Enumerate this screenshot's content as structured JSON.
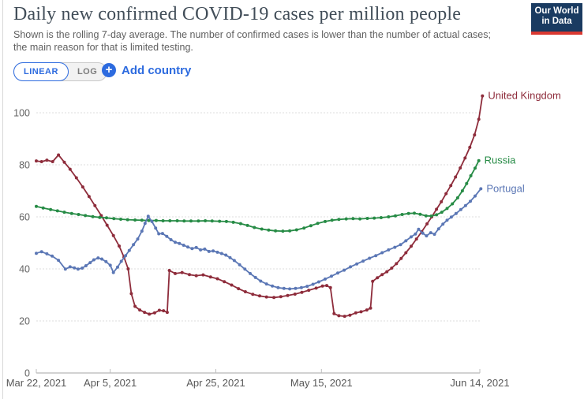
{
  "theme": {
    "accent": "#2d6bdf",
    "logo-bg": "#1a3b61",
    "logo-red": "#d93831",
    "title-color": "#414d58",
    "subtitle-color": "#606060"
  },
  "header": {
    "title": "Daily new confirmed COVID-19 cases per million people",
    "subtitle_line1": "Shown is the rolling 7-day average. The number of confirmed cases is lower than the number of actual cases;",
    "subtitle_line2": "the main reason for that is limited testing.",
    "logo_line1": "Our World",
    "logo_line2": "in Data"
  },
  "controls": {
    "linear_label": "LINEAR",
    "log_label": "LOG",
    "selected_scale": "LINEAR",
    "plus_icon": "+",
    "add_country_label": "Add country"
  },
  "chart_data": {
    "type": "line",
    "title": "Daily new confirmed COVID-19 cases per million people",
    "x_axis": {
      "unit": "date (days since Mar 22, 2021)",
      "ticks": [
        {
          "day": 0,
          "label": "Mar 22, 2021"
        },
        {
          "day": 14,
          "label": "Apr 5, 2021"
        },
        {
          "day": 34,
          "label": "Apr 25, 2021"
        },
        {
          "day": 54,
          "label": "May 15, 2021"
        },
        {
          "day": 84,
          "label": "Jun 14, 2021"
        }
      ]
    },
    "y_axis": {
      "min": 0,
      "max": 110,
      "gridlines": [
        0,
        20,
        40,
        60,
        80,
        100
      ]
    },
    "grid": true,
    "legend_position": "end-of-line",
    "series": [
      {
        "name": "United Kingdom",
        "color": "#8e2c3b",
        "points": [
          [
            0,
            81.5
          ],
          [
            1,
            81.2
          ],
          [
            2,
            81.8
          ],
          [
            3.1,
            81.2
          ],
          [
            4.2,
            83.8
          ],
          [
            5.3,
            81
          ],
          [
            6.4,
            78.3
          ],
          [
            7.6,
            75
          ],
          [
            8.8,
            71.5
          ],
          [
            10,
            67.8
          ],
          [
            11.1,
            64.3
          ],
          [
            12.3,
            60.5
          ],
          [
            13.4,
            56.8
          ],
          [
            14.6,
            52.8
          ],
          [
            15.7,
            48.8
          ],
          [
            16.6,
            44.5
          ],
          [
            17.4,
            40
          ],
          [
            18,
            30.5
          ],
          [
            18.7,
            25.6
          ],
          [
            19.6,
            24.2
          ],
          [
            20.5,
            23.3
          ],
          [
            21.4,
            22.6
          ],
          [
            22.4,
            23.1
          ],
          [
            23.3,
            24.1
          ],
          [
            24.1,
            23.9
          ],
          [
            24.8,
            23.3
          ],
          [
            25.2,
            39.4
          ],
          [
            26.3,
            38.2
          ],
          [
            27.6,
            38.6
          ],
          [
            29,
            37.8
          ],
          [
            30.3,
            37.4
          ],
          [
            31.6,
            37.7
          ],
          [
            33,
            36.9
          ],
          [
            34.3,
            36.2
          ],
          [
            35.6,
            35.1
          ],
          [
            37,
            33.8
          ],
          [
            38.3,
            32.4
          ],
          [
            39.6,
            31.2
          ],
          [
            41,
            30.2
          ],
          [
            42.3,
            29.6
          ],
          [
            43.6,
            29.2
          ],
          [
            45,
            29
          ],
          [
            46.3,
            29.3
          ],
          [
            47.6,
            29.8
          ],
          [
            49,
            30.3
          ],
          [
            50.3,
            31
          ],
          [
            51.6,
            31.8
          ],
          [
            53,
            32.6
          ],
          [
            54.2,
            33.4
          ],
          [
            55,
            33.6
          ],
          [
            55.7,
            32.8
          ],
          [
            56.4,
            22.8
          ],
          [
            57.3,
            22
          ],
          [
            58.4,
            21.8
          ],
          [
            59.4,
            22.2
          ],
          [
            60.5,
            23.1
          ],
          [
            61.5,
            23.5
          ],
          [
            62.6,
            24.2
          ],
          [
            63.3,
            24.9
          ],
          [
            63.7,
            35.2
          ],
          [
            64.6,
            36.6
          ],
          [
            65.5,
            37.8
          ],
          [
            66.4,
            38.9
          ],
          [
            67.3,
            40.3
          ],
          [
            68.2,
            42
          ],
          [
            69.1,
            44
          ],
          [
            70,
            46.2
          ],
          [
            71,
            48.7
          ],
          [
            72,
            51.5
          ],
          [
            73,
            54.3
          ],
          [
            74,
            57.3
          ],
          [
            74.9,
            60
          ],
          [
            75.8,
            62.9
          ],
          [
            76.7,
            65.8
          ],
          [
            77.6,
            68.9
          ],
          [
            78.5,
            72
          ],
          [
            79.4,
            75.3
          ],
          [
            80.3,
            78.8
          ],
          [
            81.2,
            82.6
          ],
          [
            82.1,
            86.7
          ],
          [
            83,
            91.5
          ],
          [
            83.8,
            97.5
          ],
          [
            84.5,
            106.5
          ]
        ]
      },
      {
        "name": "Russia",
        "color": "#268b45",
        "points": [
          [
            0,
            64
          ],
          [
            1.3,
            63.4
          ],
          [
            2.7,
            62.8
          ],
          [
            4,
            62.3
          ],
          [
            5.3,
            61.8
          ],
          [
            6.7,
            61.3
          ],
          [
            8,
            60.9
          ],
          [
            9.3,
            60.5
          ],
          [
            10.7,
            60.1
          ],
          [
            12,
            59.8
          ],
          [
            13.3,
            59.6
          ],
          [
            14.7,
            59.3
          ],
          [
            16,
            59.1
          ],
          [
            17.3,
            58.9
          ],
          [
            18.7,
            58.8
          ],
          [
            20,
            58.7
          ],
          [
            21.3,
            58.6
          ],
          [
            22.7,
            58.6
          ],
          [
            24,
            58.5
          ],
          [
            25.3,
            58.5
          ],
          [
            26.7,
            58.5
          ],
          [
            28,
            58.4
          ],
          [
            29.3,
            58.4
          ],
          [
            30.7,
            58.4
          ],
          [
            32,
            58.5
          ],
          [
            33.3,
            58.4
          ],
          [
            34.7,
            58.3
          ],
          [
            36,
            58.2
          ],
          [
            37.3,
            57.9
          ],
          [
            38.7,
            57.4
          ],
          [
            40,
            56.7
          ],
          [
            41.3,
            55.9
          ],
          [
            42.7,
            55.3
          ],
          [
            44,
            54.9
          ],
          [
            45.3,
            54.6
          ],
          [
            46.7,
            54.5
          ],
          [
            48,
            54.6
          ],
          [
            49.3,
            55
          ],
          [
            50.7,
            55.7
          ],
          [
            52,
            56.6
          ],
          [
            53.3,
            57.5
          ],
          [
            54.7,
            58.2
          ],
          [
            56,
            58.7
          ],
          [
            57.3,
            59
          ],
          [
            58.7,
            59.2
          ],
          [
            60,
            59.3
          ],
          [
            61.3,
            59.2
          ],
          [
            62.7,
            59.4
          ],
          [
            64,
            59.5
          ],
          [
            65.3,
            59.7
          ],
          [
            66.7,
            60
          ],
          [
            68,
            60.4
          ],
          [
            69.3,
            60.9
          ],
          [
            70.5,
            61.3
          ],
          [
            71.6,
            61.4
          ],
          [
            72.7,
            61
          ],
          [
            73.8,
            60.4
          ],
          [
            74.8,
            60.3
          ],
          [
            75.8,
            60.8
          ],
          [
            76.8,
            61.8
          ],
          [
            77.8,
            63.2
          ],
          [
            78.8,
            65
          ],
          [
            79.8,
            67.3
          ],
          [
            80.7,
            70
          ],
          [
            81.5,
            72.8
          ],
          [
            82.3,
            75.8
          ],
          [
            83.1,
            78.7
          ],
          [
            83.8,
            81.6
          ]
        ]
      },
      {
        "name": "Portugal",
        "color": "#5b77b5",
        "points": [
          [
            0,
            46
          ],
          [
            1,
            46.6
          ],
          [
            2,
            45.8
          ],
          [
            3,
            44.9
          ],
          [
            4.2,
            43.3
          ],
          [
            5.5,
            39.9
          ],
          [
            6.4,
            40.8
          ],
          [
            7.2,
            40.4
          ],
          [
            7.9,
            39.9
          ],
          [
            8.7,
            40.3
          ],
          [
            9.4,
            41.2
          ],
          [
            10.2,
            42.4
          ],
          [
            10.9,
            43.5
          ],
          [
            11.7,
            44.2
          ],
          [
            12.4,
            43.8
          ],
          [
            13.2,
            42.8
          ],
          [
            14,
            41.4
          ],
          [
            14.6,
            38.6
          ],
          [
            15.4,
            40.7
          ],
          [
            16.1,
            42.9
          ],
          [
            16.9,
            45.1
          ],
          [
            17.6,
            47.1
          ],
          [
            18.4,
            49.3
          ],
          [
            19.2,
            51.5
          ],
          [
            20,
            54.5
          ],
          [
            20.6,
            57.5
          ],
          [
            21.2,
            60.2
          ],
          [
            21.9,
            58.2
          ],
          [
            22.6,
            55.7
          ],
          [
            23.2,
            53.5
          ],
          [
            23.9,
            53.6
          ],
          [
            24.7,
            52.5
          ],
          [
            25.5,
            51.2
          ],
          [
            26.3,
            50.2
          ],
          [
            27.1,
            49.8
          ],
          [
            27.9,
            49.1
          ],
          [
            28.7,
            48.4
          ],
          [
            29.5,
            47.8
          ],
          [
            30.3,
            48.2
          ],
          [
            31.1,
            47.3
          ],
          [
            31.9,
            47.6
          ],
          [
            32.7,
            46.7
          ],
          [
            33.5,
            46.9
          ],
          [
            34.3,
            46.4
          ],
          [
            35.1,
            45.9
          ],
          [
            35.9,
            45.3
          ],
          [
            36.7,
            44.3
          ],
          [
            37.5,
            43.2
          ],
          [
            38.5,
            41.6
          ],
          [
            39.5,
            39.9
          ],
          [
            40.5,
            38.2
          ],
          [
            41.5,
            36.7
          ],
          [
            42.5,
            35.3
          ],
          [
            43.6,
            34.2
          ],
          [
            44.7,
            33.4
          ],
          [
            45.8,
            32.8
          ],
          [
            46.9,
            32.5
          ],
          [
            48,
            32.3
          ],
          [
            49.1,
            32.5
          ],
          [
            50.2,
            32.8
          ],
          [
            51.3,
            33.3
          ],
          [
            52.4,
            34.1
          ],
          [
            53.5,
            35
          ],
          [
            54.7,
            36.1
          ],
          [
            55.9,
            37.2
          ],
          [
            57.1,
            38.4
          ],
          [
            58.3,
            39.5
          ],
          [
            59.5,
            40.8
          ],
          [
            60.7,
            41.9
          ],
          [
            61.9,
            43
          ],
          [
            63.1,
            44.1
          ],
          [
            64.3,
            45.1
          ],
          [
            65.5,
            46.2
          ],
          [
            66.7,
            47.3
          ],
          [
            67.9,
            48.3
          ],
          [
            69,
            49.3
          ],
          [
            70,
            50.8
          ],
          [
            71,
            52.3
          ],
          [
            71.8,
            53.4
          ],
          [
            72.4,
            55.2
          ],
          [
            73.2,
            53.7
          ],
          [
            73.9,
            52.7
          ],
          [
            74.7,
            53.9
          ],
          [
            75.4,
            53.3
          ],
          [
            76.2,
            55.4
          ],
          [
            77,
            57.2
          ],
          [
            77.8,
            58.7
          ],
          [
            78.6,
            59.9
          ],
          [
            79.5,
            61.3
          ],
          [
            80.4,
            62.8
          ],
          [
            81.3,
            64.3
          ],
          [
            82.2,
            66
          ],
          [
            83.1,
            68
          ],
          [
            84.2,
            70.8
          ]
        ]
      }
    ]
  }
}
